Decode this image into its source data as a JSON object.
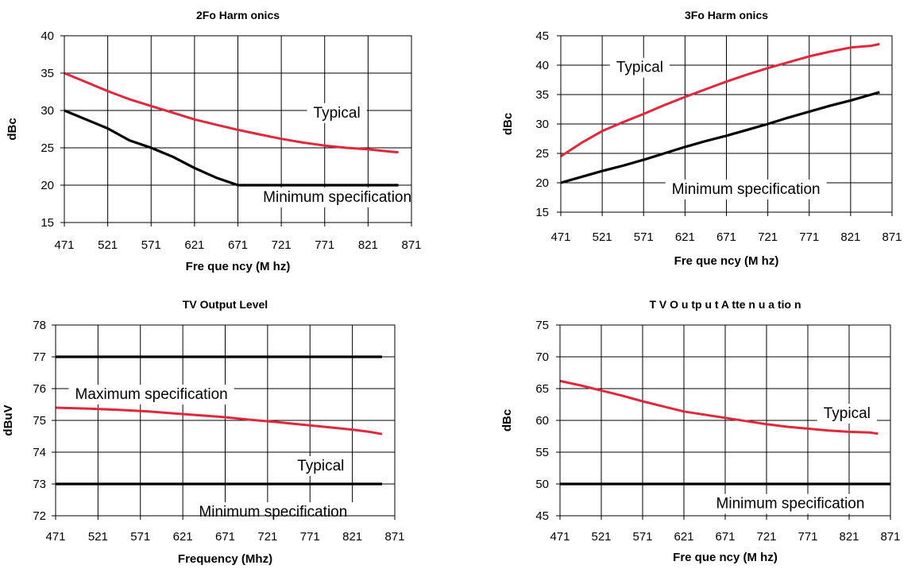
{
  "colors": {
    "typical": "#e0283c",
    "spec": "#000000"
  },
  "chart_data": [
    {
      "type": "line",
      "title": "2Fo Harm onics",
      "xlabel": "Fre que ncy (M hz)",
      "ylabel": "dBc",
      "xticks": [
        "471",
        "521",
        "571",
        "621",
        "671",
        "721",
        "771",
        "821",
        "871"
      ],
      "yticks": [
        "15",
        "20",
        "25",
        "30",
        "35",
        "40"
      ],
      "xlim": [
        471,
        871
      ],
      "ylim": [
        15,
        40
      ],
      "grid": true,
      "series": [
        {
          "name": "Typical",
          "color": "#e0283c",
          "x": [
            471,
            496,
            521,
            546,
            571,
            596,
            621,
            646,
            671,
            696,
            721,
            746,
            771,
            796,
            821,
            846,
            856
          ],
          "y": [
            35,
            33.8,
            32.6,
            31.5,
            30.6,
            29.7,
            28.8,
            28.1,
            27.4,
            26.8,
            26.2,
            25.7,
            25.3,
            25.0,
            24.8,
            24.5,
            24.4
          ]
        },
        {
          "name": "Minimum specification",
          "color": "#000000",
          "x": [
            471,
            496,
            521,
            546,
            571,
            596,
            621,
            646,
            671,
            721,
            771,
            821,
            856
          ],
          "y": [
            30,
            28.8,
            27.6,
            26.0,
            25.0,
            23.8,
            22.3,
            21.0,
            20.0,
            20.0,
            20.0,
            20.0,
            20.0
          ]
        }
      ],
      "annotations": [
        {
          "text": "Typical",
          "x": 758,
          "y": 29.6
        },
        {
          "text": "Minimum specification",
          "x": 700,
          "y": 18.3
        }
      ]
    },
    {
      "type": "line",
      "title": "3Fo Harm onics",
      "xlabel": "Fre que ncy (M hz)",
      "ylabel": "dBc",
      "xticks": [
        "471",
        "521",
        "571",
        "621",
        "671",
        "721",
        "771",
        "821",
        "871"
      ],
      "yticks": [
        "15",
        "20",
        "25",
        "30",
        "35",
        "40",
        "45"
      ],
      "xlim": [
        471,
        871
      ],
      "ylim": [
        15,
        45
      ],
      "grid": true,
      "series": [
        {
          "name": "Typical",
          "color": "#e0283c",
          "x": [
            471,
            496,
            521,
            546,
            571,
            596,
            621,
            646,
            671,
            696,
            721,
            746,
            771,
            796,
            821,
            846,
            856
          ],
          "y": [
            24.5,
            26.8,
            28.8,
            30.3,
            31.7,
            33.2,
            34.6,
            35.9,
            37.2,
            38.4,
            39.5,
            40.5,
            41.5,
            42.3,
            43.0,
            43.3,
            43.6
          ]
        },
        {
          "name": "Minimum specification",
          "color": "#000000",
          "x": [
            471,
            496,
            521,
            546,
            571,
            596,
            621,
            646,
            671,
            696,
            721,
            746,
            771,
            796,
            821,
            846,
            856
          ],
          "y": [
            20.0,
            21.0,
            22.0,
            22.9,
            23.9,
            25.0,
            26.1,
            27.1,
            28.0,
            29.0,
            30.0,
            31.1,
            32.1,
            33.1,
            34.0,
            35.0,
            35.4
          ]
        }
      ],
      "annotations": [
        {
          "text": "Typical",
          "x": 538,
          "y": 39.5
        },
        {
          "text": "Minimum specification",
          "x": 605,
          "y": 18.8
        }
      ]
    },
    {
      "type": "line",
      "title": "TV Output Level",
      "xlabel": "Frequency (Mhz)",
      "ylabel": "dBuV",
      "xticks": [
        "471",
        "521",
        "571",
        "621",
        "671",
        "721",
        "771",
        "821",
        "871"
      ],
      "yticks": [
        "72",
        "73",
        "74",
        "75",
        "76",
        "77",
        "78"
      ],
      "xlim": [
        471,
        871
      ],
      "ylim": [
        72,
        78
      ],
      "grid": true,
      "series": [
        {
          "name": "Maximum specification",
          "color": "#000000",
          "x": [
            471,
            856
          ],
          "y": [
            77,
            77
          ]
        },
        {
          "name": "Typical",
          "color": "#e0283c",
          "x": [
            471,
            511,
            546,
            581,
            611,
            641,
            671,
            701,
            731,
            761,
            791,
            821,
            841,
            856
          ],
          "y": [
            75.4,
            75.37,
            75.33,
            75.28,
            75.22,
            75.16,
            75.1,
            75.02,
            74.95,
            74.87,
            74.79,
            74.71,
            74.64,
            74.57
          ]
        },
        {
          "name": "Minimum specification",
          "color": "#000000",
          "x": [
            471,
            856
          ],
          "y": [
            73,
            73
          ]
        }
      ],
      "annotations": [
        {
          "text": "Maximum specification",
          "x": 494,
          "y": 75.8
        },
        {
          "text": "Typical",
          "x": 756,
          "y": 73.55
        },
        {
          "text": "Minimum specification",
          "x": 640,
          "y": 72.1
        }
      ]
    },
    {
      "type": "line",
      "title": "T V  O u tp u t  A tte n u a tio n",
      "xlabel": "Fre que ncy (M hz)",
      "ylabel": "dBc",
      "xticks": [
        "471",
        "521",
        "571",
        "621",
        "671",
        "721",
        "771",
        "821",
        "871"
      ],
      "yticks": [
        "45",
        "50",
        "55",
        "60",
        "65",
        "70",
        "75"
      ],
      "xlim": [
        471,
        871
      ],
      "ylim": [
        45,
        75
      ],
      "grid": true,
      "series": [
        {
          "name": "Typical",
          "color": "#e0283c",
          "x": [
            471,
            496,
            521,
            546,
            571,
            596,
            621,
            646,
            671,
            696,
            721,
            746,
            771,
            796,
            821,
            846,
            856
          ],
          "y": [
            66.2,
            65.5,
            64.7,
            63.9,
            63.0,
            62.2,
            61.4,
            60.9,
            60.4,
            59.9,
            59.4,
            59.0,
            58.7,
            58.4,
            58.2,
            58.1,
            57.9
          ]
        },
        {
          "name": "Minimum specification",
          "color": "#000000",
          "x": [
            471,
            871
          ],
          "y": [
            50,
            50
          ]
        }
      ],
      "annotations": [
        {
          "text": "Typical",
          "x": 790,
          "y": 61.0
        },
        {
          "text": "Minimum specification",
          "x": 660,
          "y": 46.8
        }
      ]
    }
  ]
}
